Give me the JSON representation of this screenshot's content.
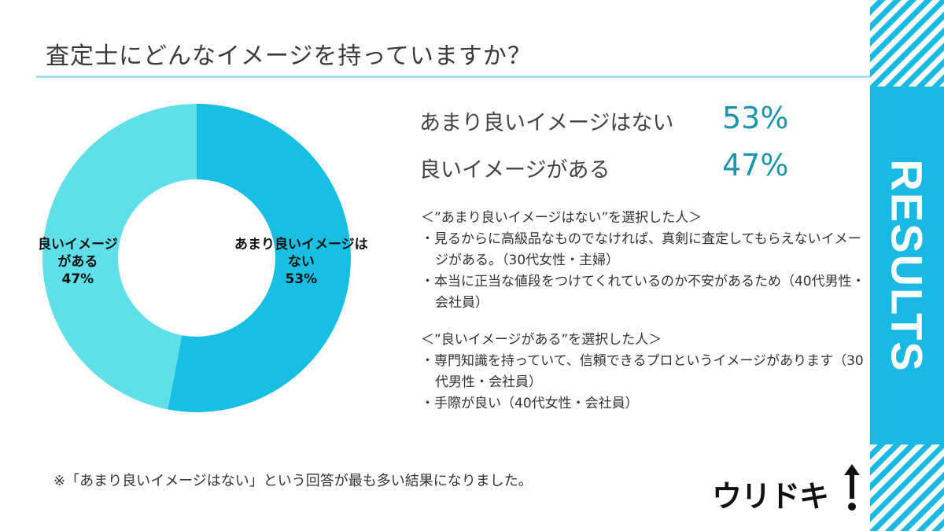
{
  "page": {
    "title": "査定士にどんなイメージを持っていますか？",
    "side_label": "RESULTS",
    "accent_color": "#19b9e3",
    "footnote": "※「あまり良いイメージはない」という回答が最も多い結果になりました。",
    "logo_text": "ウリドキ",
    "logo_icon": "up-arrow-icon"
  },
  "results": [
    {
      "label": "あまり良いイメージはない",
      "value": "53%"
    },
    {
      "label": "良いイメージがある",
      "value": "47%"
    }
  ],
  "chart_data": {
    "type": "pie",
    "donut": true,
    "slices": [
      {
        "label_lines": [
          "あまり良いイメージは",
          "ない",
          "53%"
        ],
        "value": 53,
        "color": "#19bfe3"
      },
      {
        "label_lines": [
          "良いイメージ",
          "がある",
          "47%"
        ],
        "value": 47,
        "color": "#5fe0e8"
      }
    ]
  },
  "comments": {
    "group1": {
      "heading": "＜”あまり良いイメージはない”を選択した人＞",
      "items": [
        "・見るからに高級品なものでなければ、真剣に査定してもらえないイメージがある。（30代女性・主婦）",
        "・本当に正当な値段をつけてくれているのか不安があるため（40代男性・会社員）"
      ]
    },
    "group2": {
      "heading": "＜”良いイメージがある”を選択した人＞",
      "items": [
        "・専門知識を持っていて、信頼できるプロというイメージがあります（30代男性・会社員）",
        "・手際が良い（40代女性・会社員）"
      ]
    }
  }
}
